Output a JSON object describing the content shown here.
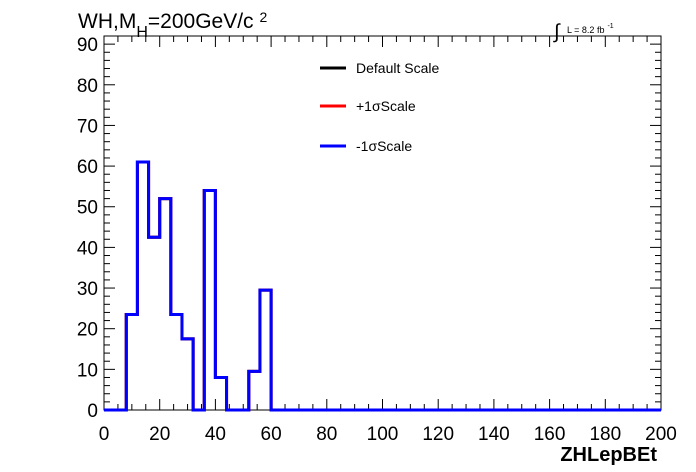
{
  "chart_data": {
    "type": "line",
    "title": {
      "main": "WH,M",
      "sub": "H",
      "rest": "=200GeV/c",
      "sup": "2"
    },
    "lumi": {
      "integral_symbol": "∫",
      "text": "L = 8.2 fb",
      "sup": "-1"
    },
    "xlabel": "ZHLepBEt",
    "ylabel": "",
    "xlim": [
      0,
      200
    ],
    "ylim": [
      0,
      92
    ],
    "x_ticks": [
      "0",
      "20",
      "40",
      "60",
      "80",
      "100",
      "120",
      "140",
      "160",
      "180",
      "200"
    ],
    "y_ticks": [
      "0",
      "10",
      "20",
      "30",
      "40",
      "50",
      "60",
      "70",
      "80",
      "90"
    ],
    "bin_edges": [
      0,
      4,
      8,
      12,
      16,
      20,
      24,
      28,
      32,
      36,
      40,
      44,
      48,
      52,
      56,
      60,
      64,
      68,
      72,
      76,
      80,
      84,
      88,
      92,
      96,
      100,
      104,
      108,
      112,
      116,
      120,
      124,
      128,
      132,
      136,
      140,
      144,
      148,
      152,
      156,
      160,
      164,
      168,
      172,
      176,
      180,
      184,
      188,
      192,
      196,
      200
    ],
    "series": [
      {
        "name": "Default Scale",
        "color": "#000000",
        "values": [
          0,
          0,
          23.5,
          61,
          42.5,
          52,
          23.5,
          17.5,
          0,
          54,
          8,
          0,
          0,
          9.5,
          29.5,
          0,
          0,
          0,
          0,
          0,
          0,
          0,
          0,
          0,
          0,
          0,
          0,
          0,
          0,
          0,
          0,
          0,
          0,
          0,
          0,
          0,
          0,
          0,
          0,
          0,
          0,
          0,
          0,
          0,
          0,
          0,
          0,
          0,
          0,
          0
        ]
      },
      {
        "name": "+1σScale",
        "color": "#ff0000",
        "values": [
          0,
          0,
          23.5,
          61,
          42.5,
          52,
          23.5,
          17.5,
          0,
          54,
          8,
          0,
          0,
          9.5,
          29.5,
          0,
          0,
          0,
          0,
          0,
          0,
          0,
          0,
          0,
          0,
          0,
          0,
          0,
          0,
          0,
          0,
          0,
          0,
          0,
          0,
          0,
          0,
          0,
          0,
          0,
          0,
          0,
          0,
          0,
          0,
          0,
          0,
          0,
          0,
          0
        ]
      },
      {
        "name": "-1σScale",
        "color": "#0000ff",
        "values": [
          0,
          0,
          23.5,
          61,
          42.5,
          52,
          23.5,
          17.5,
          0,
          54,
          8,
          0,
          0,
          9.5,
          29.5,
          0,
          0,
          0,
          0,
          0,
          0,
          0,
          0,
          0,
          0,
          0,
          0,
          0,
          0,
          0,
          0,
          0,
          0,
          0,
          0,
          0,
          0,
          0,
          0,
          0,
          0,
          0,
          0,
          0,
          0,
          0,
          0,
          0,
          0,
          0
        ]
      }
    ],
    "legend": {
      "placement": "top-center",
      "entries": [
        "Default Scale",
        "+1σScale",
        "-1σScale"
      ]
    },
    "grid": false
  }
}
